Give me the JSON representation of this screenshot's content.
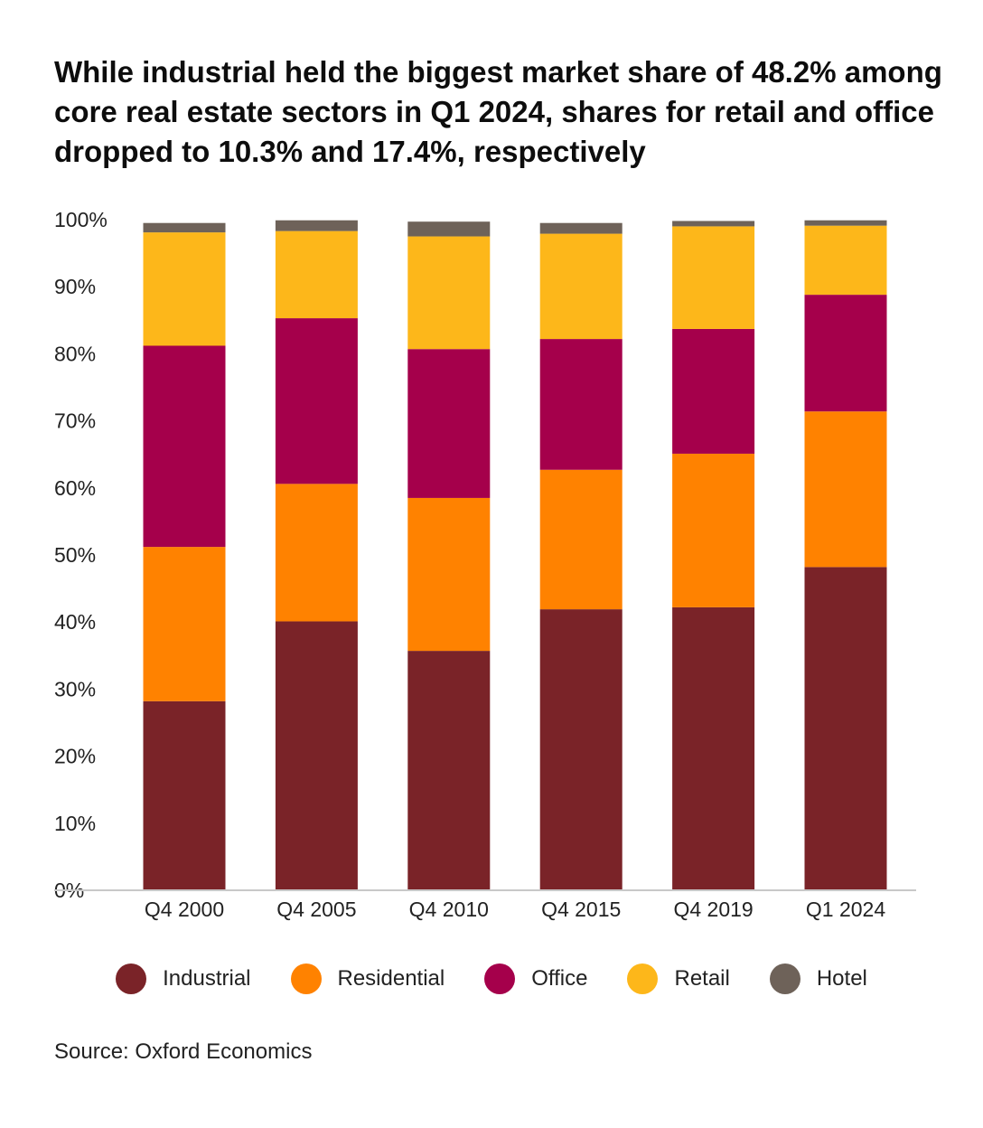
{
  "title": "While industrial held the biggest market share of 48.2% among core real estate sectors in Q1 2024, shares for retail and office dropped to 10.3% and 17.4%, respectively",
  "source": "Source: Oxford Economics",
  "chart_data": {
    "type": "bar",
    "stacked": true,
    "categories": [
      "Q4 2000",
      "Q4 2005",
      "Q4 2010",
      "Q4 2015",
      "Q4 2019",
      "Q1 2024"
    ],
    "ylim": [
      0,
      100
    ],
    "yticks": [
      "0%",
      "10%",
      "20%",
      "30%",
      "40%",
      "50%",
      "60%",
      "70%",
      "80%",
      "90%",
      "100%"
    ],
    "legend_position": "bottom",
    "grid": false,
    "series": [
      {
        "name": "Industrial",
        "color": "#7a2328",
        "values": [
          28.2,
          40.1,
          35.7,
          41.9,
          42.2,
          48.2
        ]
      },
      {
        "name": "Residential",
        "color": "#ff8200",
        "values": [
          23.0,
          20.5,
          22.8,
          20.8,
          22.9,
          23.2
        ]
      },
      {
        "name": "Office",
        "color": "#a5004b",
        "values": [
          30.0,
          24.7,
          22.2,
          19.5,
          18.6,
          17.4
        ]
      },
      {
        "name": "Retail",
        "color": "#fdb71a",
        "values": [
          16.9,
          13.0,
          16.8,
          15.7,
          15.3,
          10.3
        ]
      },
      {
        "name": "Hotel",
        "color": "#6e6259",
        "values": [
          1.4,
          1.6,
          2.2,
          1.6,
          0.8,
          0.8
        ]
      }
    ]
  }
}
